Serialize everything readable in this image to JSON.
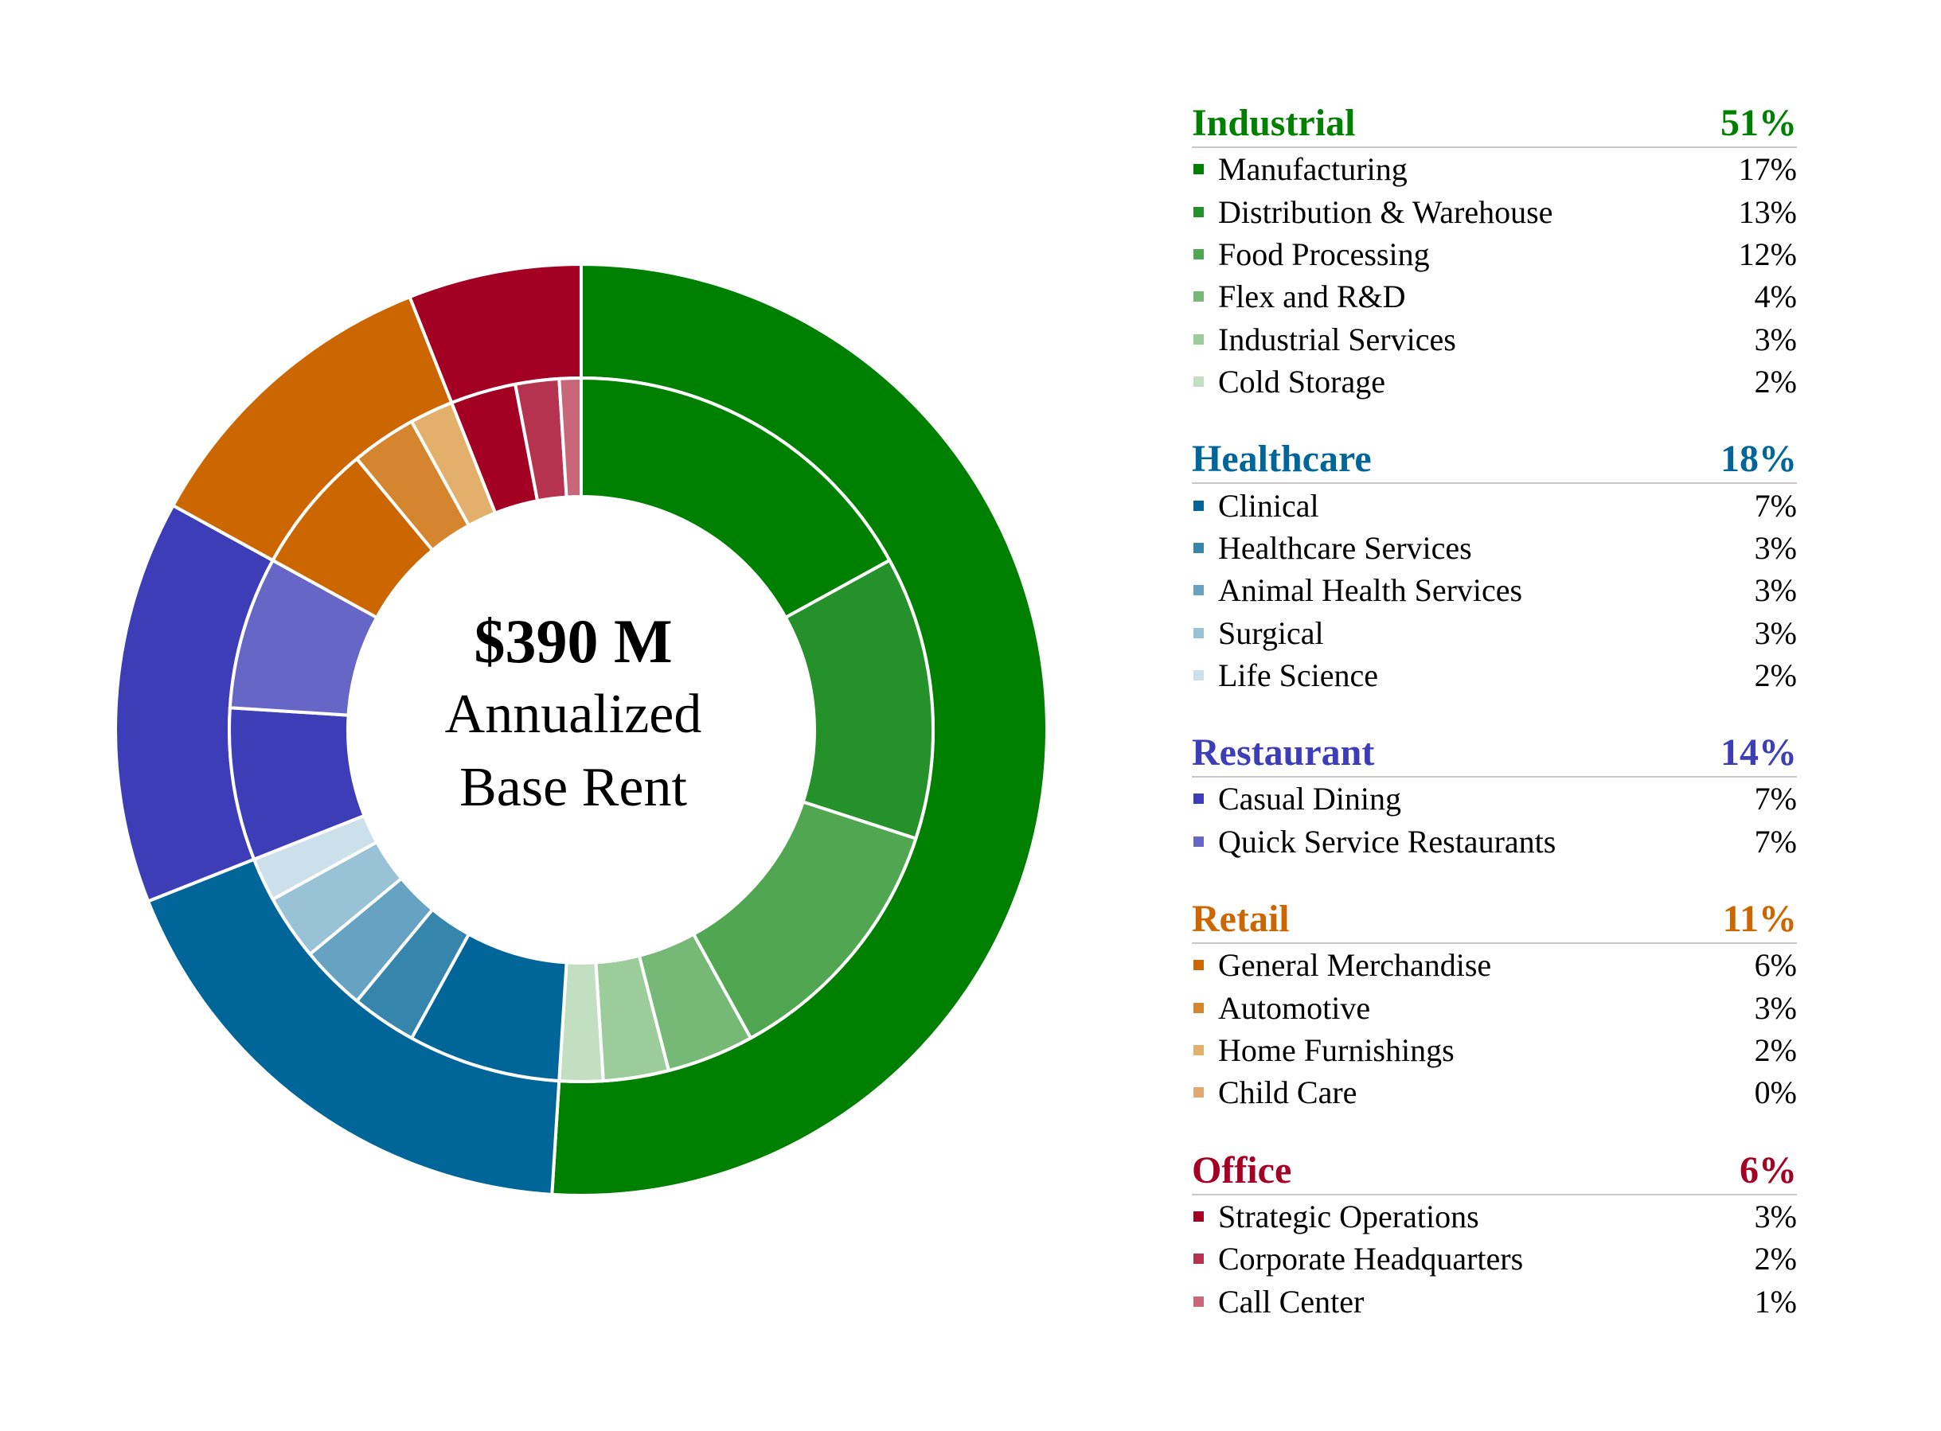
{
  "chart_data": {
    "type": "donut",
    "center_value": "$390 M",
    "center_label_line1": "Annualized",
    "center_label_line2": "Base Rent",
    "groups": [
      {
        "name": "Industrial",
        "value": 51,
        "label": "51%",
        "color": "#008000",
        "items": [
          {
            "name": "Manufacturing",
            "value": 17,
            "label": "17%",
            "color": "#008000"
          },
          {
            "name": "Distribution & Warehouse",
            "value": 13,
            "label": "13%",
            "color": "#25912A"
          },
          {
            "name": "Food Processing",
            "value": 12,
            "label": "12%",
            "color": "#51A651"
          },
          {
            "name": "Flex and R&D",
            "value": 4,
            "label": "4%",
            "color": "#76B876"
          },
          {
            "name": "Industrial Services",
            "value": 3,
            "label": "3%",
            "color": "#9CCC9A"
          },
          {
            "name": "Cold Storage",
            "value": 2,
            "label": "2%",
            "color": "#C2E0C1"
          }
        ]
      },
      {
        "name": "Healthcare",
        "value": 18,
        "label": "18%",
        "color": "#006699",
        "items": [
          {
            "name": "Clinical",
            "value": 7,
            "label": "7%",
            "color": "#006699"
          },
          {
            "name": "Healthcare Services",
            "value": 3,
            "label": "3%",
            "color": "#3585AC"
          },
          {
            "name": "Animal Health Services",
            "value": 3,
            "label": "3%",
            "color": "#66A3C2"
          },
          {
            "name": "Surgical",
            "value": 3,
            "label": "3%",
            "color": "#99C2D6"
          },
          {
            "name": "Life Science",
            "value": 2,
            "label": "2%",
            "color": "#CCE0EB"
          }
        ]
      },
      {
        "name": "Restaurant",
        "value": 14,
        "label": "14%",
        "color": "#3D3DB8",
        "items": [
          {
            "name": "Casual Dining",
            "value": 7,
            "label": "7%",
            "color": "#3D3DB8"
          },
          {
            "name": "Quick Service Restaurants",
            "value": 7,
            "label": "7%",
            "color": "#6666C7"
          }
        ]
      },
      {
        "name": "Retail",
        "value": 11,
        "label": "11%",
        "color": "#CC6600",
        "items": [
          {
            "name": "General Merchandise",
            "value": 6,
            "label": "6%",
            "color": "#CC6600"
          },
          {
            "name": "Automotive",
            "value": 3,
            "label": "3%",
            "color": "#D6852F"
          },
          {
            "name": "Home Furnishings",
            "value": 2,
            "label": "2%",
            "color": "#E2B06A"
          },
          {
            "name": "Child Care",
            "value": 0,
            "label": "0%",
            "color": "#E3A86F"
          }
        ]
      },
      {
        "name": "Office",
        "value": 6,
        "label": "6%",
        "color": "#A30024",
        "items": [
          {
            "name": "Strategic Operations",
            "value": 3,
            "label": "3%",
            "color": "#A30024"
          },
          {
            "name": "Corporate Headquarters",
            "value": 2,
            "label": "2%",
            "color": "#B5334F"
          },
          {
            "name": "Call Center",
            "value": 1,
            "label": "1%",
            "color": "#C96679"
          }
        ]
      }
    ]
  }
}
